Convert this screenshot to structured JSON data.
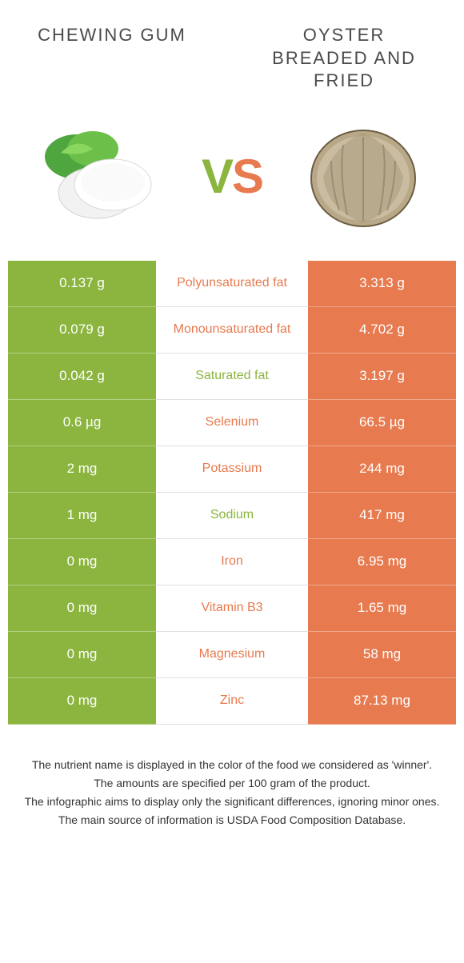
{
  "header": {
    "left_title": "Chewing Gum",
    "right_title": "Oyster Breaded and Fried",
    "vs_v": "V",
    "vs_s": "S"
  },
  "colors": {
    "left": "#8bb53e",
    "right": "#e77a4f",
    "text": "#4a4a4a",
    "footer_text": "#333333",
    "row_border": "#e0e0e0"
  },
  "typography": {
    "title_fontsize": 22,
    "title_letter_spacing": 2,
    "vs_fontsize": 60,
    "cell_fontsize": 17,
    "mid_fontsize": 16,
    "footer_fontsize": 14
  },
  "rows": [
    {
      "left": "0.137 g",
      "label": "Polyunsaturated fat",
      "right": "3.313 g",
      "winner": "right"
    },
    {
      "left": "0.079 g",
      "label": "Monounsaturated fat",
      "right": "4.702 g",
      "winner": "right"
    },
    {
      "left": "0.042 g",
      "label": "Saturated fat",
      "right": "3.197 g",
      "winner": "left"
    },
    {
      "left": "0.6 µg",
      "label": "Selenium",
      "right": "66.5 µg",
      "winner": "right"
    },
    {
      "left": "2 mg",
      "label": "Potassium",
      "right": "244 mg",
      "winner": "right"
    },
    {
      "left": "1 mg",
      "label": "Sodium",
      "right": "417 mg",
      "winner": "left"
    },
    {
      "left": "0 mg",
      "label": "Iron",
      "right": "6.95 mg",
      "winner": "right"
    },
    {
      "left": "0 mg",
      "label": "Vitamin B3",
      "right": "1.65 mg",
      "winner": "right"
    },
    {
      "left": "0 mg",
      "label": "Magnesium",
      "right": "58 mg",
      "winner": "right"
    },
    {
      "left": "0 mg",
      "label": "Zinc",
      "right": "87.13 mg",
      "winner": "right"
    }
  ],
  "footer": {
    "line1": "The nutrient name is displayed in the color of the food we considered as 'winner'.",
    "line2": "The amounts are specified per 100 gram of the product.",
    "line3": "The infographic aims to display only the significant differences, ignoring minor ones.",
    "line4": "The main source of information is USDA Food Composition Database."
  },
  "icons": {
    "left": "chewing-gum-icon",
    "right": "oyster-icon"
  }
}
